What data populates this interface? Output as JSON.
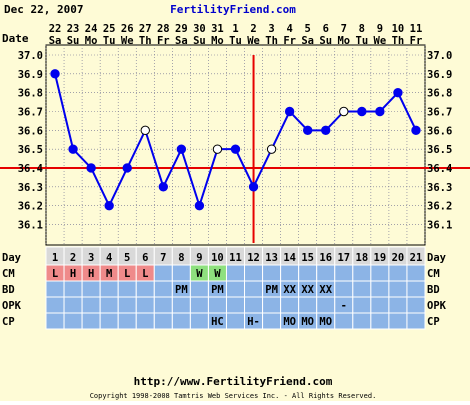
{
  "header": {
    "date": "Dec 22, 2007",
    "site": "FertilityFriend.com"
  },
  "footer": {
    "url": "http://www.FertilityFriend.com",
    "copyright": "Copyright 1998-2008 Tamtris Web Services Inc. - All Rights Reserved."
  },
  "row_labels": {
    "date": "Date",
    "day": "Day",
    "cm": "CM",
    "bd": "BD",
    "opk": "OPK",
    "cp": "CP"
  },
  "colors": {
    "plot_bg": "#fefbd6",
    "grid": "#6b6b8e",
    "line": "#0000ee",
    "red": "#e60000",
    "row_blue": "#8cb4e6",
    "cm_red": "#ef8a8a",
    "cm_green": "#8ee07e",
    "day_row": "#d9d9d9"
  },
  "chart_data": {
    "type": "line",
    "title": "",
    "xlabel": "",
    "ylabel": "",
    "ylim": [
      36.1,
      37.0
    ],
    "yticks": [
      "37.0",
      "36.9",
      "36.8",
      "36.7",
      "36.6",
      "36.5",
      "36.4",
      "36.3",
      "36.2",
      "36.1"
    ],
    "dates": [
      "22",
      "23",
      "24",
      "25",
      "26",
      "27",
      "28",
      "29",
      "30",
      "31",
      "1",
      "2",
      "3",
      "4",
      "5",
      "6",
      "7",
      "8",
      "9",
      "10",
      "11"
    ],
    "weekdays": [
      "Sa",
      "Su",
      "Mo",
      "Tu",
      "We",
      "Th",
      "Fr",
      "Sa",
      "Su",
      "Mo",
      "Tu",
      "We",
      "Th",
      "Fr",
      "Sa",
      "Su",
      "Mo",
      "Tu",
      "We",
      "Th",
      "Fr"
    ],
    "days": [
      "1",
      "2",
      "3",
      "4",
      "5",
      "6",
      "7",
      "8",
      "9",
      "10",
      "11",
      "12",
      "13",
      "14",
      "15",
      "16",
      "17",
      "18",
      "19",
      "20",
      "21"
    ],
    "series": [
      {
        "values": [
          36.9,
          36.5,
          36.4,
          36.2,
          36.4,
          36.6,
          36.3,
          36.5,
          36.2,
          36.5,
          36.5,
          36.3,
          36.5,
          36.7,
          36.6,
          36.6,
          36.7,
          36.7,
          36.7,
          36.8,
          36.6
        ],
        "open": [
          false,
          false,
          false,
          false,
          false,
          true,
          false,
          false,
          false,
          true,
          false,
          false,
          true,
          false,
          false,
          false,
          true,
          false,
          false,
          false,
          false
        ]
      }
    ],
    "coverline": 36.4,
    "ovulation_day": 12,
    "cm": [
      "L",
      "H",
      "H",
      "M",
      "L",
      "L",
      "",
      "",
      "W",
      "W",
      "",
      "",
      "",
      "",
      "",
      "",
      "",
      "",
      "",
      "",
      ""
    ],
    "cm_colors": [
      "red",
      "red",
      "red",
      "red",
      "red",
      "red",
      "",
      "",
      "green",
      "green",
      "",
      "",
      "",
      "",
      "",
      "",
      "",
      "",
      "",
      "",
      ""
    ],
    "bd": [
      "",
      "",
      "",
      "",
      "",
      "",
      "",
      "PM",
      "",
      "PM",
      "",
      "",
      "PM",
      "XX",
      "XX",
      "XX",
      "",
      "",
      "",
      "",
      ""
    ],
    "opk": [
      "",
      "",
      "",
      "",
      "",
      "",
      "",
      "",
      "",
      "",
      "",
      "",
      "",
      "",
      "",
      "",
      "-",
      "",
      "",
      "",
      ""
    ],
    "cp": [
      "",
      "",
      "",
      "",
      "",
      "",
      "",
      "",
      "",
      "HC",
      "",
      "H-",
      "",
      "MO",
      "MO",
      "MO",
      "",
      "",
      "",
      "",
      ""
    ],
    "grid": true
  }
}
